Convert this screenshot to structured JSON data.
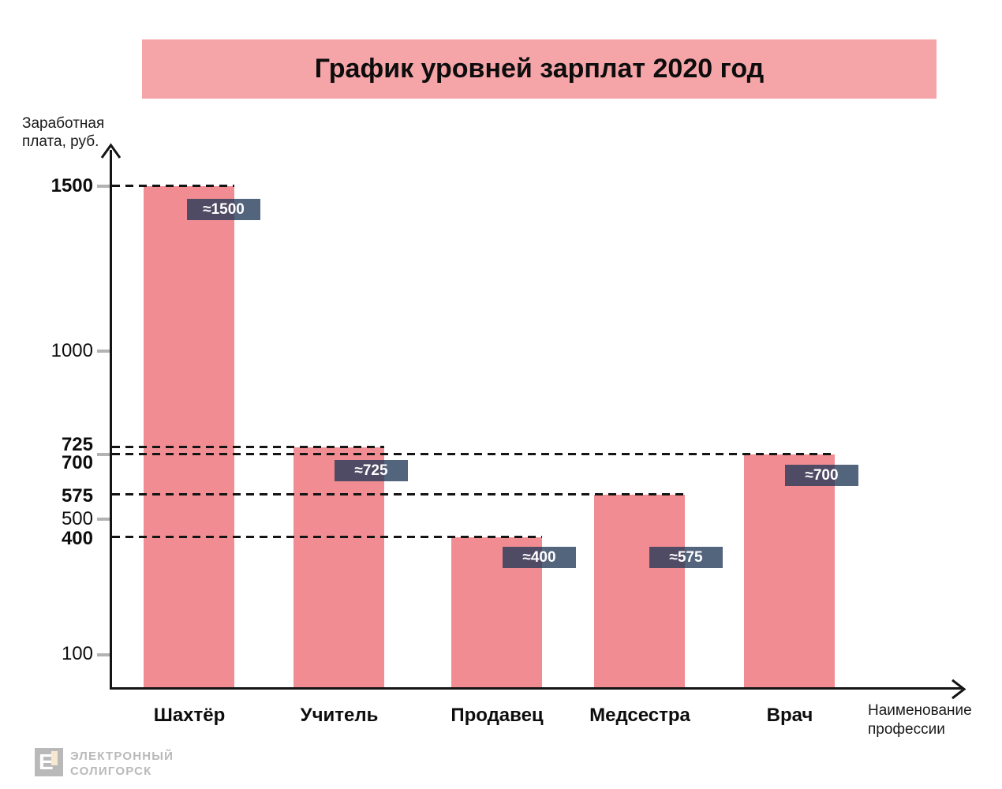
{
  "figure": {
    "title": "График уровней зарплат 2020 год",
    "y_axis_title": [
      "Заработная",
      "плата, руб."
    ],
    "x_axis_title": [
      "Наименование",
      "профессии"
    ]
  },
  "chart_data": {
    "type": "bar",
    "title": "График уровней зарплат 2020 год",
    "ylabel": "Заработная плата, руб.",
    "xlabel": "Наименование профессии",
    "categories": [
      "Шахтёр",
      "Учитель",
      "Продавец",
      "Медсестра",
      "Врач"
    ],
    "values": [
      1500,
      725,
      400,
      575,
      700
    ],
    "value_labels": [
      "≈1500",
      "≈725",
      "≈400",
      "≈575",
      "≈700"
    ],
    "ylim": [
      0,
      1600
    ],
    "legend": "none",
    "grid": "dashed leader line from y-axis to the top right corner of each bar",
    "y_ticks": [
      {
        "value": 1500,
        "bold": true,
        "gray_tick": true,
        "dashed_line": true
      },
      {
        "value": 1000,
        "bold": false,
        "gray_tick": true,
        "dashed_line": false
      },
      {
        "value": 725,
        "bold": true,
        "gray_tick": false,
        "dashed_line": true
      },
      {
        "value": 700,
        "bold": true,
        "gray_tick": true,
        "dashed_line": true
      },
      {
        "value": 575,
        "bold": true,
        "gray_tick": false,
        "dashed_line": true
      },
      {
        "value": 500,
        "bold": false,
        "gray_tick": true,
        "dashed_line": false
      },
      {
        "value": 400,
        "bold": true,
        "gray_tick": false,
        "dashed_line": true
      },
      {
        "value": 100,
        "bold": false,
        "gray_tick": true,
        "dashed_line": false
      }
    ]
  },
  "colors": {
    "bar": "#f18d92",
    "title_banner": "#f5a4a8",
    "value_label_bg": "rgba(35,56,88,0.78)",
    "value_label_text": "#ffffff",
    "axis": "#141414",
    "gray_tick": "#b3b3b3",
    "watermark": "#b9b9b9",
    "watermark_accent": "#f7e8d2"
  },
  "watermark": {
    "icon": "electronic-soligorsk-logo",
    "logo_letter": "Е",
    "line1": "ЭЛЕКТРОННЫЙ",
    "line2": "СОЛИГОРСК"
  }
}
